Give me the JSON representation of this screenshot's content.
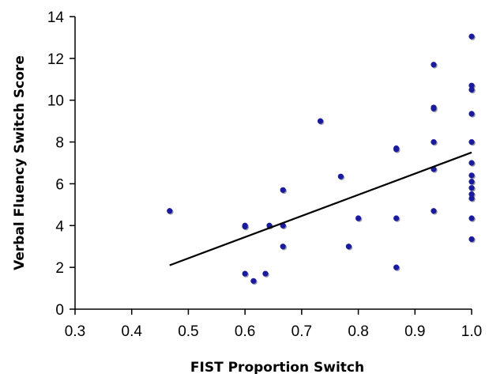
{
  "chart_data": {
    "type": "scatter",
    "xlabel": "FIST Proportion Switch",
    "ylabel": "Verbal Fluency Switch Score",
    "xlim": [
      0.3,
      1.0
    ],
    "ylim": [
      0,
      14
    ],
    "xticks": [
      "0.3",
      "0.4",
      "0.5",
      "0.6",
      "0.7",
      "0.8",
      "0.9",
      "1.0"
    ],
    "yticks": [
      "0",
      "2",
      "4",
      "6",
      "8",
      "10",
      "12",
      "14"
    ],
    "grid": false,
    "legend": "none",
    "point_color": "#1a1a9e",
    "trendline": {
      "x": [
        0.467,
        1.0
      ],
      "y": [
        2.1,
        7.5
      ],
      "color": "#000000"
    },
    "points": [
      {
        "x": 0.467,
        "y": 4.7
      },
      {
        "x": 0.6,
        "y": 4.0
      },
      {
        "x": 0.6,
        "y": 3.95
      },
      {
        "x": 0.6,
        "y": 1.7
      },
      {
        "x": 0.615,
        "y": 1.35
      },
      {
        "x": 0.636,
        "y": 1.7
      },
      {
        "x": 0.643,
        "y": 4.0
      },
      {
        "x": 0.667,
        "y": 5.7
      },
      {
        "x": 0.667,
        "y": 4.0
      },
      {
        "x": 0.667,
        "y": 3.0
      },
      {
        "x": 0.733,
        "y": 9.0
      },
      {
        "x": 0.769,
        "y": 6.35
      },
      {
        "x": 0.783,
        "y": 3.0
      },
      {
        "x": 0.8,
        "y": 4.35
      },
      {
        "x": 0.867,
        "y": 7.7
      },
      {
        "x": 0.867,
        "y": 7.65
      },
      {
        "x": 0.867,
        "y": 4.35
      },
      {
        "x": 0.867,
        "y": 2.0
      },
      {
        "x": 0.933,
        "y": 11.7
      },
      {
        "x": 0.933,
        "y": 9.65
      },
      {
        "x": 0.933,
        "y": 9.6
      },
      {
        "x": 0.933,
        "y": 8.0
      },
      {
        "x": 0.933,
        "y": 6.7
      },
      {
        "x": 0.933,
        "y": 4.7
      },
      {
        "x": 1.0,
        "y": 13.05
      },
      {
        "x": 1.0,
        "y": 10.7
      },
      {
        "x": 1.0,
        "y": 10.5
      },
      {
        "x": 1.0,
        "y": 9.35
      },
      {
        "x": 1.0,
        "y": 8.0
      },
      {
        "x": 1.0,
        "y": 7.0
      },
      {
        "x": 1.0,
        "y": 6.4
      },
      {
        "x": 1.0,
        "y": 6.1
      },
      {
        "x": 1.0,
        "y": 5.8
      },
      {
        "x": 1.0,
        "y": 5.5
      },
      {
        "x": 1.0,
        "y": 5.3
      },
      {
        "x": 1.0,
        "y": 4.35
      },
      {
        "x": 1.0,
        "y": 3.35
      }
    ]
  }
}
